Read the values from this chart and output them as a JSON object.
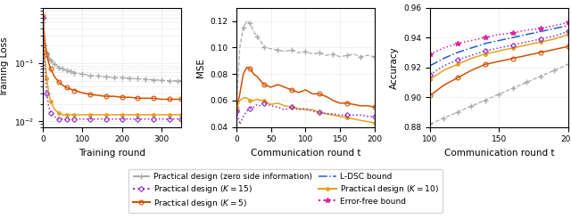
{
  "subplot1": {
    "xlabel": "Training round",
    "ylabel": "Training Loss",
    "xlim": [
      0,
      350
    ],
    "ylim": [
      0.008,
      0.9
    ],
    "xticks": [
      0,
      100,
      200,
      300
    ],
    "ytick_label": "10^-1"
  },
  "subplot2": {
    "xlabel": "Communication round t",
    "ylabel": "MSE",
    "xlim": [
      0,
      200
    ],
    "ylim": [
      0.04,
      0.13
    ],
    "xticks": [
      0,
      50,
      100,
      150,
      200
    ],
    "yticks": [
      0.04,
      0.06,
      0.08,
      0.1,
      0.12
    ]
  },
  "subplot3": {
    "xlabel": "Communication round t",
    "ylabel": "Accuracy",
    "xlim": [
      100,
      200
    ],
    "ylim": [
      0.88,
      0.96
    ],
    "xticks": [
      100,
      150,
      200
    ],
    "yticks": [
      0.88,
      0.9,
      0.92,
      0.94,
      0.96
    ]
  },
  "colors": {
    "zero_side": "#aaaaaa",
    "K5": "#d45000",
    "K10": "#e8a020",
    "K15": "#9030c0",
    "ldsc": "#2060cc",
    "errfree": "#e020a0"
  },
  "grid_color": "#cccccc",
  "grid_linestyle": ":"
}
